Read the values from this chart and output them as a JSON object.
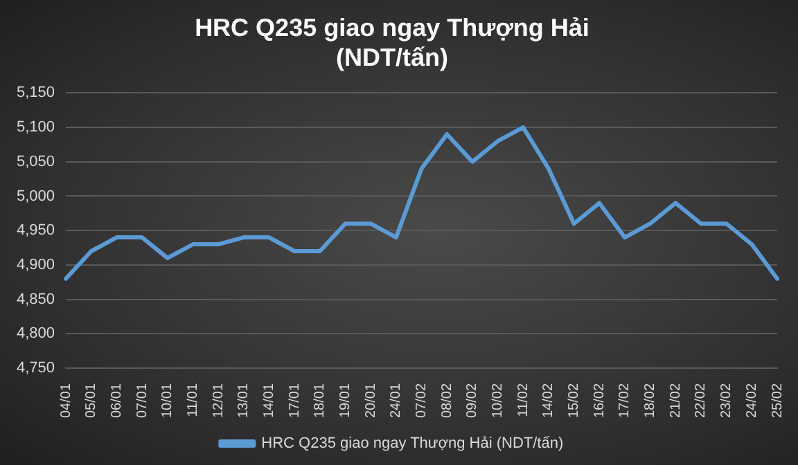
{
  "chart_data": {
    "type": "line",
    "title": "HRC Q235 giao ngay Thượng Hải\n(NDT/tấn)",
    "categories": [
      "04/01",
      "05/01",
      "06/01",
      "07/01",
      "10/01",
      "11/01",
      "12/01",
      "13/01",
      "14/01",
      "17/01",
      "18/01",
      "19/01",
      "20/01",
      "24/01",
      "07/02",
      "08/02",
      "09/02",
      "10/02",
      "11/02",
      "14/02",
      "15/02",
      "16/02",
      "17/02",
      "18/02",
      "21/02",
      "22/02",
      "23/02",
      "24/02",
      "25/02"
    ],
    "series": [
      {
        "name": "HRC Q235 giao ngay Thượng Hải (NDT/tấn)",
        "color": "#5b9bd5",
        "values": [
          4880,
          4920,
          4940,
          4940,
          4910,
          4930,
          4930,
          4940,
          4940,
          4920,
          4920,
          4960,
          4960,
          4940,
          5040,
          5090,
          5050,
          5080,
          5100,
          5040,
          4960,
          4990,
          4940,
          4960,
          4990,
          4960,
          4960,
          4930,
          4880
        ]
      }
    ],
    "ylim": [
      4750,
      5150
    ],
    "yticks": [
      {
        "value": 4750,
        "label": "4,750"
      },
      {
        "value": 4800,
        "label": "4,800"
      },
      {
        "value": 4850,
        "label": "4,850"
      },
      {
        "value": 4900,
        "label": "4,900"
      },
      {
        "value": 4950,
        "label": "4,950"
      },
      {
        "value": 5000,
        "label": "5,000"
      },
      {
        "value": 5050,
        "label": "5,050"
      },
      {
        "value": 5100,
        "label": "5,100"
      },
      {
        "value": 5150,
        "label": "5,150"
      }
    ],
    "grid": "y",
    "legend": "bottom",
    "marker": "none",
    "line_style": "solid"
  }
}
